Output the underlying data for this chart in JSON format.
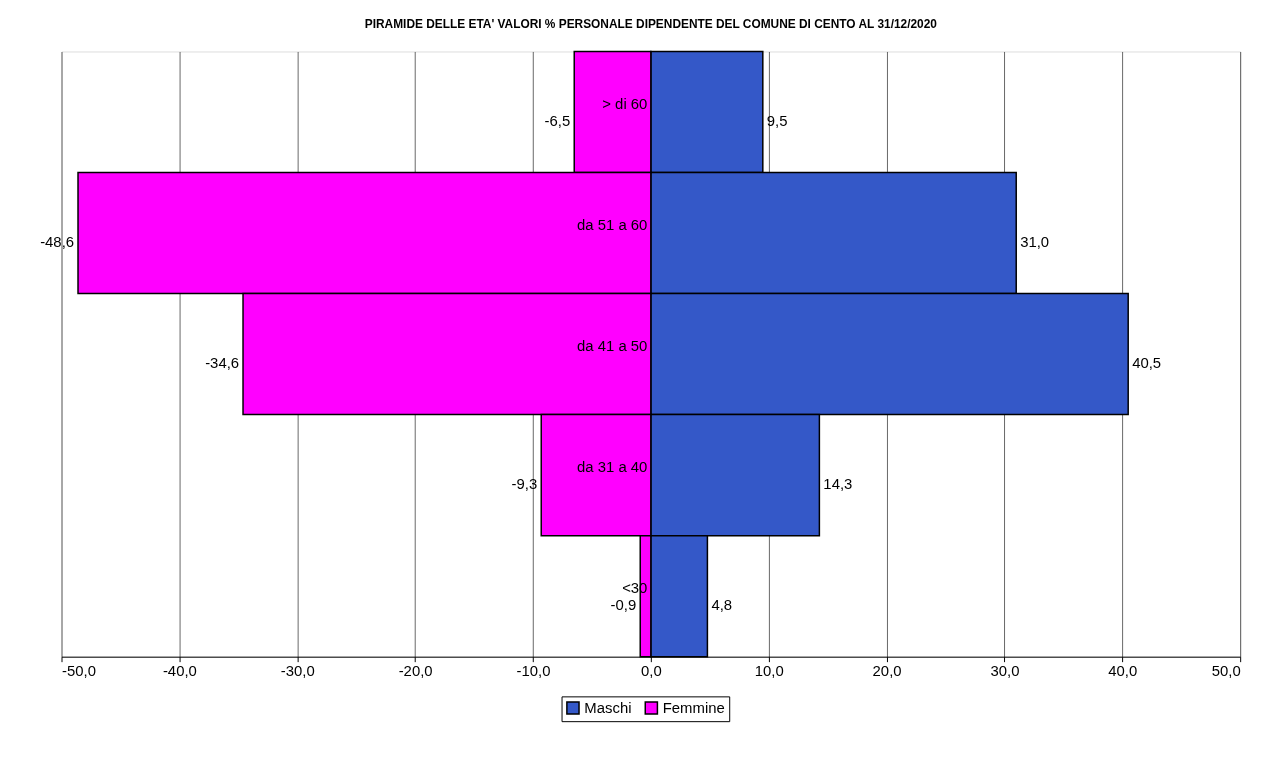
{
  "chart_data": {
    "type": "bar",
    "orientation": "horizontal",
    "stacked": true,
    "title": "PIRAMIDE DELLE ETA' VALORI % PERSONALE DIPENDENTE DEL COMUNE DI CENTO AL 31/12/2020",
    "categories": [
      "> di 60",
      "da 51 a 60",
      "da 41 a 50",
      "da 31 a 40",
      "<30"
    ],
    "series": [
      {
        "name": "Maschi",
        "color": "#3458c8",
        "values": [
          9.5,
          31.0,
          40.5,
          14.3,
          4.8
        ],
        "value_labels": [
          "9,5",
          "31,0",
          "40,5",
          "14,3",
          "4,8"
        ]
      },
      {
        "name": "Femmine",
        "color": "#ff00ff",
        "values": [
          -6.5,
          -48.6,
          -34.6,
          -9.3,
          -0.9
        ],
        "value_labels": [
          "-6,5",
          "-48,6",
          "-34,6",
          "-9,3",
          "-0,9"
        ]
      }
    ],
    "xlim": [
      -50,
      50
    ],
    "xticks": [
      {
        "value": -50,
        "label": "-50,0"
      },
      {
        "value": -40,
        "label": "-40,0"
      },
      {
        "value": -30,
        "label": "-30,0"
      },
      {
        "value": -20,
        "label": "-20,0"
      },
      {
        "value": -10,
        "label": "-10,0"
      },
      {
        "value": 0,
        "label": "0,0"
      },
      {
        "value": 10,
        "label": "10,0"
      },
      {
        "value": 20,
        "label": "20,0"
      },
      {
        "value": 30,
        "label": "30,0"
      },
      {
        "value": 40,
        "label": "40,0"
      },
      {
        "value": 50,
        "label": "50,0"
      }
    ],
    "grid": "x",
    "legend": "bottom"
  }
}
